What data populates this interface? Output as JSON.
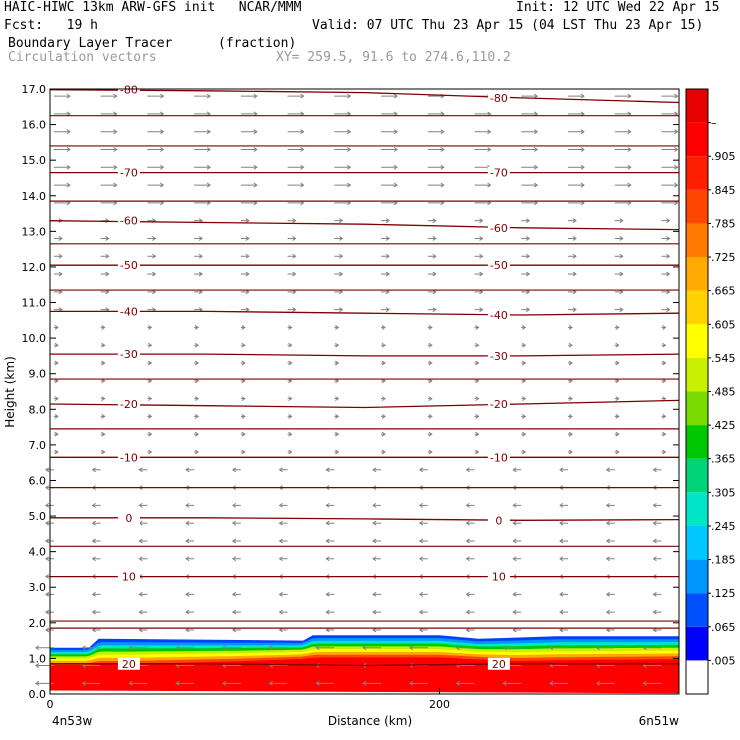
{
  "header": {
    "line1_left": "HAIC-HIWC 13km ARW-GFS init   NCAR/MMM",
    "line1_right": "Init: 12 UTC Wed 22 Apr 15",
    "line2_left": "Fcst:   19 h",
    "line2_right": "Valid: 07 UTC Thu 23 Apr 15 (04 LST Thu 23 Apr 15)",
    "field1_name": "Boundary Layer Tracer",
    "field1_units": "(fraction)",
    "field2_name": "Circulation vectors",
    "xy_text": "XY= 259.5, 91.6 to 274.6,110.2"
  },
  "chart_data": {
    "type": "heatmap",
    "xlabel": "Distance (km)",
    "ylabel": "Height (km)",
    "xlim": [
      0,
      323
    ],
    "ylim": [
      0,
      17
    ],
    "x_ticks": [
      0,
      200
    ],
    "y_ticks": [
      "0.0",
      "1.0",
      "2.0",
      "3.0",
      "4.0",
      "5.0",
      "6.0",
      "7.0",
      "8.0",
      "9.0",
      "10.0",
      "11.0",
      "12.0",
      "13.0",
      "14.0",
      "15.0",
      "16.0",
      "17.0"
    ],
    "x_end_labels": {
      "left": "4n53w",
      "right": "6n51w"
    },
    "colorbar": {
      "levels": [
        ".005",
        ".065",
        ".125",
        ".185",
        ".245",
        ".305",
        ".365",
        ".425",
        ".485",
        ".545",
        ".605",
        ".665",
        ".725",
        ".785",
        ".845",
        ".905",
        "–"
      ],
      "colors": [
        "#ffffff",
        "#0000ff",
        "#0050ff",
        "#0096ff",
        "#00c8ff",
        "#00e6c8",
        "#00d278",
        "#00c800",
        "#78dc00",
        "#c8f000",
        "#ffff00",
        "#ffd200",
        "#ffaa00",
        "#ff7800",
        "#ff4600",
        "#ff1e00",
        "#ff0000",
        "#e60000"
      ]
    },
    "shaded_layer": {
      "description_top_km": [
        [
          0,
          1.3
        ],
        [
          20,
          1.3
        ],
        [
          25,
          1.55
        ],
        [
          130,
          1.5
        ],
        [
          135,
          1.65
        ],
        [
          200,
          1.65
        ],
        [
          220,
          1.55
        ],
        [
          260,
          1.62
        ],
        [
          323,
          1.62
        ]
      ],
      "red_top_km": [
        [
          0,
          0.75
        ],
        [
          40,
          0.75
        ],
        [
          100,
          0.85
        ],
        [
          140,
          0.95
        ],
        [
          200,
          0.95
        ],
        [
          240,
          0.85
        ],
        [
          323,
          0.9
        ]
      ]
    },
    "isotherms": [
      {
        "label": "20",
        "y": [
          0.85,
          0.85,
          0.8,
          0.85,
          0.85
        ],
        "label_pos": [
          [
            "40",
            0.85
          ],
          [
            "230",
            0.85
          ]
        ]
      },
      {
        "label": "10",
        "y": [
          3.3,
          3.3,
          3.3,
          3.3,
          3.3
        ]
      },
      {
        "label": "0",
        "y": [
          4.95,
          4.95,
          4.92,
          4.88,
          4.9
        ]
      },
      {
        "label": "-10",
        "y": [
          6.65,
          6.65,
          6.65,
          6.65,
          6.65
        ]
      },
      {
        "label": "-20",
        "y": [
          8.15,
          8.1,
          8.05,
          8.15,
          8.25
        ]
      },
      {
        "label": "-30",
        "y": [
          9.55,
          9.55,
          9.5,
          9.5,
          9.55
        ]
      },
      {
        "label": "-40",
        "y": [
          10.75,
          10.75,
          10.7,
          10.65,
          10.7
        ]
      },
      {
        "label": "-50",
        "y": [
          12.05,
          12.05,
          12.05,
          12.05,
          12.05
        ]
      },
      {
        "label": "-60",
        "y": [
          13.3,
          13.25,
          13.2,
          13.1,
          13.05
        ]
      },
      {
        "label": "-70",
        "y": [
          14.65,
          14.65,
          14.65,
          14.65,
          14.65
        ]
      },
      {
        "label": "-80",
        "y": [
          16.98,
          16.95,
          16.9,
          16.75,
          16.62
        ]
      }
    ],
    "isotherm_label_text": [
      "20",
      "10",
      "0",
      "-10",
      "-20",
      "-30",
      "-40",
      "-50",
      "-60",
      "-70",
      "-80"
    ],
    "other_contours_km": [
      1.85,
      2.05,
      4.15,
      5.8,
      7.45,
      8.85,
      11.35,
      12.65,
      13.85,
      15.4,
      16.25
    ]
  }
}
